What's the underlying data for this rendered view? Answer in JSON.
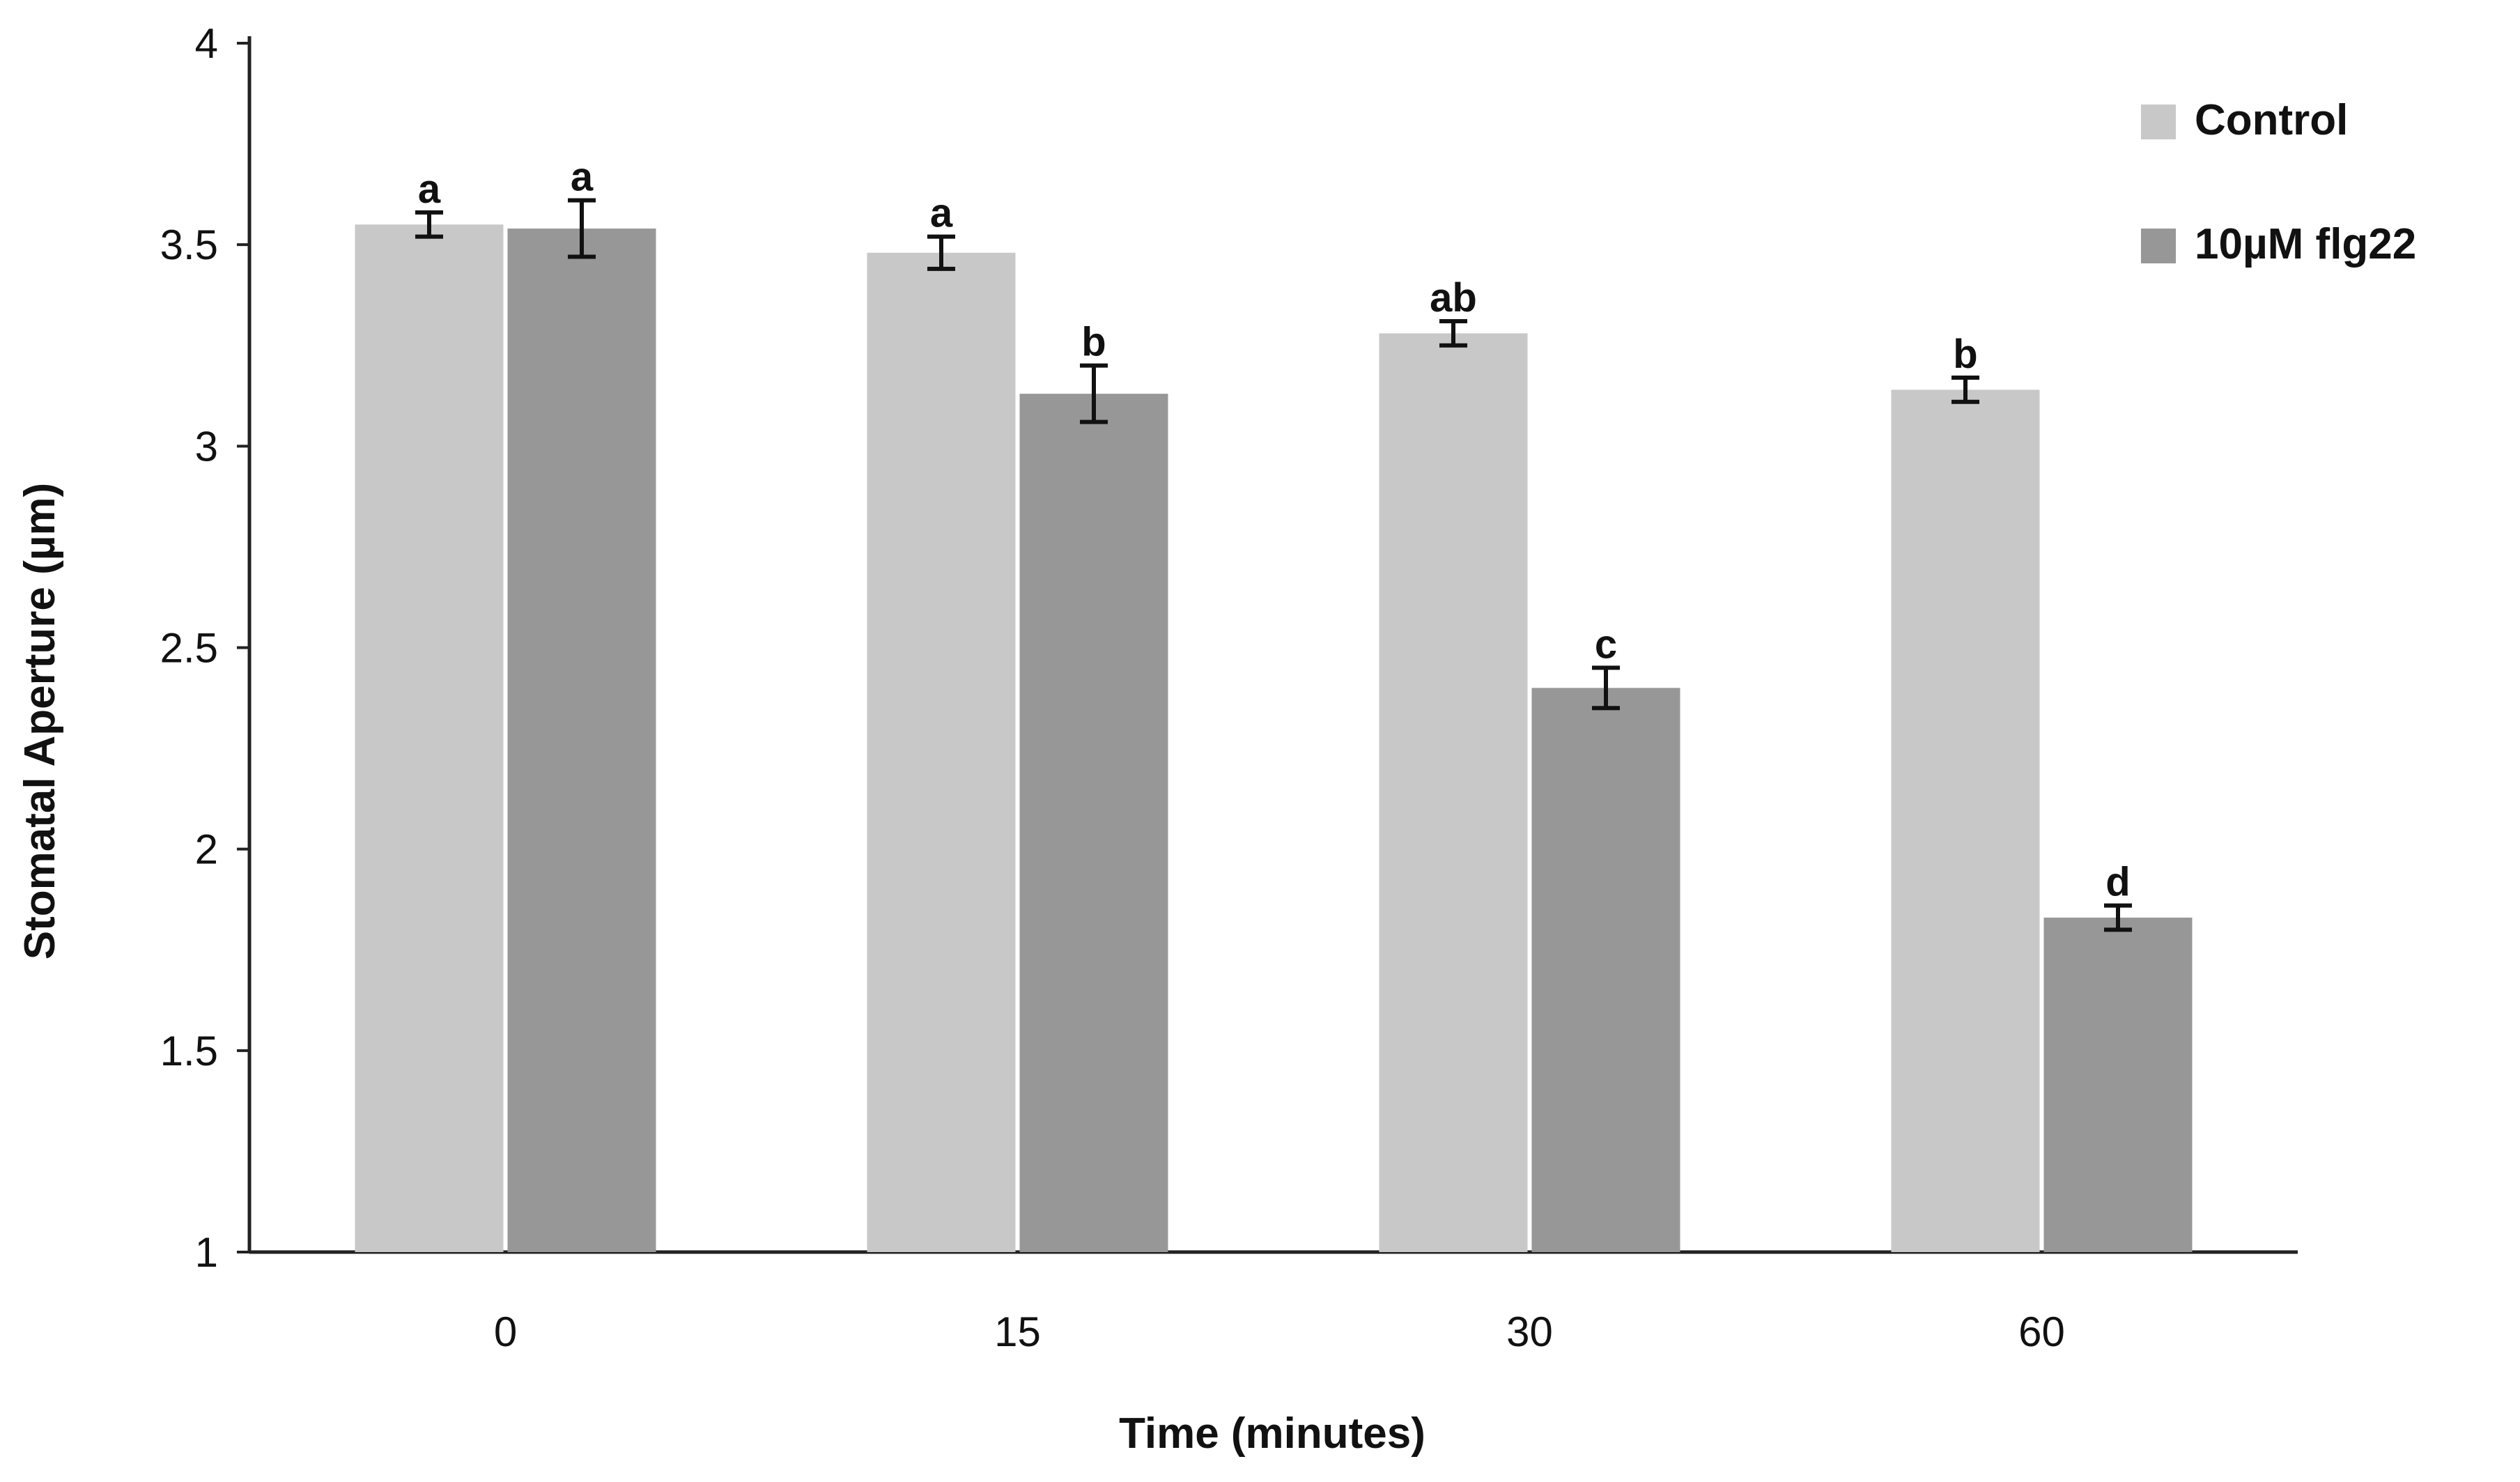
{
  "chart_data": {
    "type": "bar",
    "title": "",
    "xlabel": "Time (minutes)",
    "ylabel": "Stomatal Aperture (µm)",
    "ylim": [
      1,
      4
    ],
    "yticks": [
      "1",
      "1.5",
      "2",
      "2.5",
      "3",
      "3.5",
      "4"
    ],
    "categories": [
      "0",
      "15",
      "30",
      "60"
    ],
    "grid": false,
    "legend_position": "top-right",
    "series": [
      {
        "name": "Control",
        "color": "#c8c8c8",
        "values": [
          3.55,
          3.48,
          3.28,
          3.14
        ],
        "errors": [
          0.03,
          0.04,
          0.03,
          0.03
        ],
        "labels": [
          "a",
          "a",
          "ab",
          "b"
        ]
      },
      {
        "name": "10µM flg22",
        "color": "#979797",
        "values": [
          3.54,
          3.13,
          2.4,
          1.83
        ],
        "errors": [
          0.07,
          0.07,
          0.05,
          0.03
        ],
        "labels": [
          "a",
          "b",
          "c",
          "d"
        ]
      }
    ]
  }
}
